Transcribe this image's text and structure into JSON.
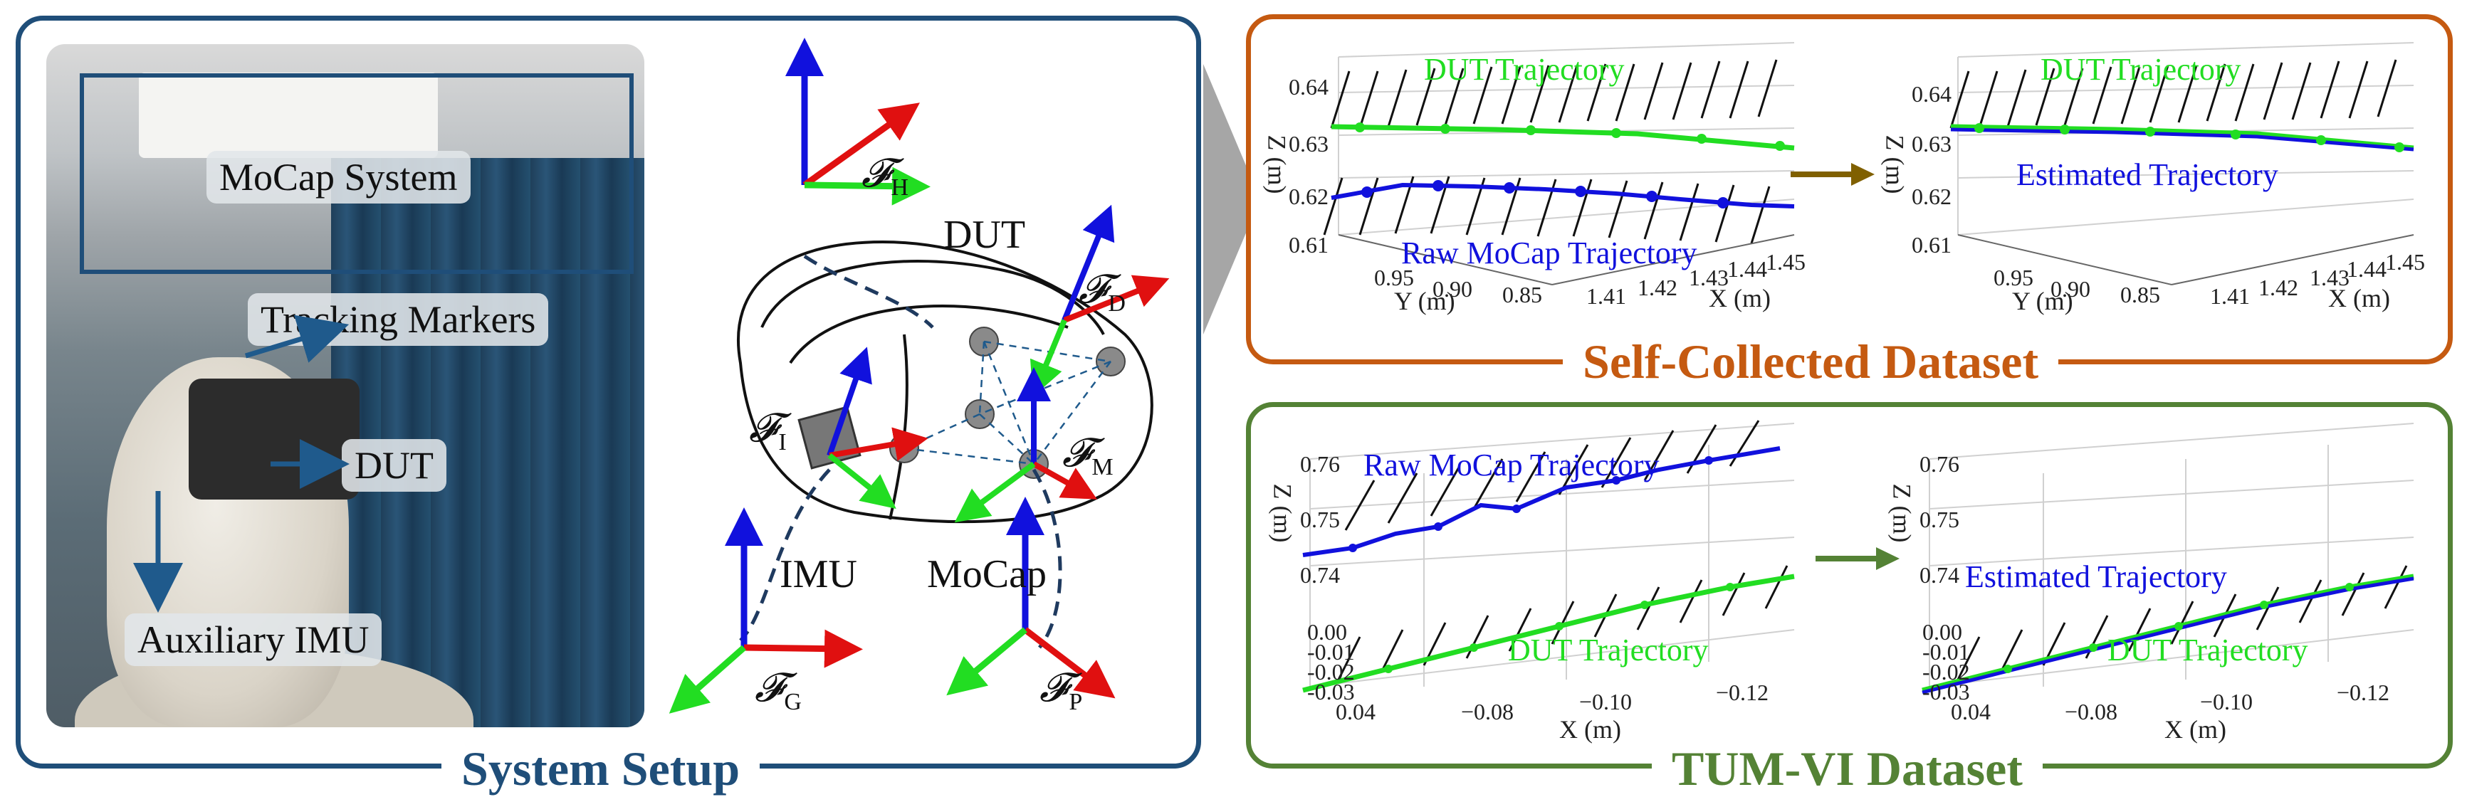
{
  "colors": {
    "setup_border": "#1f4e79",
    "self_border": "#c55a11",
    "tum_border": "#548235",
    "dut_green": "#22dd22",
    "raw_blue": "#1111dd",
    "arrow_gold": "#806000",
    "arrow_green": "#548235",
    "chevron_gray": "#a6a6a6"
  },
  "setup": {
    "title": "System Setup",
    "photo_labels": {
      "mocap": "MoCap System",
      "markers": "Tracking Markers",
      "dut": "DUT",
      "aux_imu": "Auxiliary IMU"
    },
    "diagram": {
      "frame_symbol": "𝓕",
      "frames": {
        "h": "H",
        "d": "D",
        "i": "I",
        "m": "M",
        "g": "G",
        "p": "P"
      },
      "texts": {
        "dut": "DUT",
        "imu": "IMU",
        "mocap": "MoCap"
      }
    }
  },
  "self": {
    "title": "Self-Collected Dataset",
    "left": {
      "label_dut": "DUT Trajectory",
      "label_raw": "Raw MoCap Trajectory",
      "z_ticks": [
        "0.64",
        "0.63",
        "0.62",
        "0.61"
      ],
      "y_ticks": [
        "0.95",
        "0.90",
        "0.85"
      ],
      "x_ticks": [
        "1.41",
        "1.42",
        "1.43",
        "1.44",
        "1.45"
      ],
      "z_label": "Z (m)",
      "y_label": "Y (m)",
      "x_label": "X (m)"
    },
    "right": {
      "label_dut": "DUT Trajectory",
      "label_est": "Estimated Trajectory",
      "z_ticks": [
        "0.64",
        "0.63",
        "0.62",
        "0.61"
      ],
      "y_ticks": [
        "0.95",
        "0.90",
        "0.85"
      ],
      "x_ticks": [
        "1.41",
        "1.42",
        "1.43",
        "1.44",
        "1.45"
      ],
      "z_label": "Z (m)",
      "y_label": "Y (m)",
      "x_label": "X (m)"
    }
  },
  "tum": {
    "title": "TUM-VI Dataset",
    "left": {
      "label_raw": "Raw MoCap Trajectory",
      "label_dut": "DUT Trajectory",
      "z_ticks": [
        "0.76",
        "0.75",
        "0.74"
      ],
      "y_ticks": [
        "0.00",
        "-0.01",
        "-0.02",
        "-0.03",
        "0.04"
      ],
      "x_ticks": [
        "−0.08",
        "−0.10",
        "−0.12"
      ],
      "z_label": "Z (m)",
      "x_label": "X (m)"
    },
    "right": {
      "label_est": "Estimated Trajectory",
      "label_dut": "DUT Trajectory",
      "z_ticks": [
        "0.76",
        "0.75",
        "0.74"
      ],
      "y_ticks": [
        "0.00",
        "-0.01",
        "-0.02",
        "-0.03",
        "0.04"
      ],
      "x_ticks": [
        "−0.08",
        "−0.10",
        "−0.12"
      ],
      "z_label": "Z (m)",
      "x_label": "X (m)"
    }
  }
}
